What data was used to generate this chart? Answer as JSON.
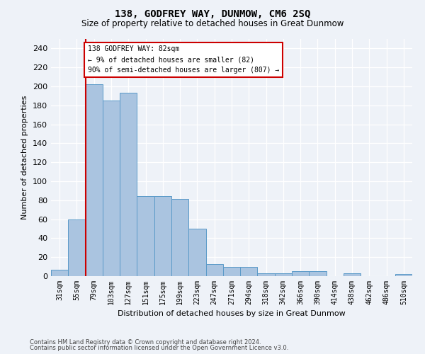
{
  "title": "138, GODFREY WAY, DUNMOW, CM6 2SQ",
  "subtitle": "Size of property relative to detached houses in Great Dunmow",
  "xlabel": "Distribution of detached houses by size in Great Dunmow",
  "ylabel": "Number of detached properties",
  "footer1": "Contains HM Land Registry data © Crown copyright and database right 2024.",
  "footer2": "Contains public sector information licensed under the Open Government Licence v3.0.",
  "categories": [
    "31sqm",
    "55sqm",
    "79sqm",
    "103sqm",
    "127sqm",
    "151sqm",
    "175sqm",
    "199sqm",
    "223sqm",
    "247sqm",
    "271sqm",
    "294sqm",
    "318sqm",
    "342sqm",
    "366sqm",
    "390sqm",
    "414sqm",
    "438sqm",
    "462sqm",
    "486sqm",
    "510sqm"
  ],
  "values": [
    7,
    60,
    202,
    185,
    193,
    84,
    84,
    81,
    50,
    13,
    10,
    10,
    3,
    3,
    5,
    5,
    0,
    3,
    0,
    0,
    2
  ],
  "bar_color": "#aac4e0",
  "bar_edge_color": "#5a9ac8",
  "annotation_text_line1": "138 GODFREY WAY: 82sqm",
  "annotation_text_line2": "← 9% of detached houses are smaller (82)",
  "annotation_text_line3": "90% of semi-detached houses are larger (807) →",
  "annotation_box_color": "#ffffff",
  "annotation_box_edge": "#cc0000",
  "vline_color": "#cc0000",
  "background_color": "#eef2f8",
  "grid_color": "#ffffff",
  "ylim": [
    0,
    250
  ],
  "yticks": [
    0,
    20,
    40,
    60,
    80,
    100,
    120,
    140,
    160,
    180,
    200,
    220,
    240
  ],
  "title_fontsize": 10,
  "subtitle_fontsize": 8.5,
  "ylabel_fontsize": 8,
  "xlabel_fontsize": 8,
  "tick_fontsize": 7,
  "footer_fontsize": 6
}
